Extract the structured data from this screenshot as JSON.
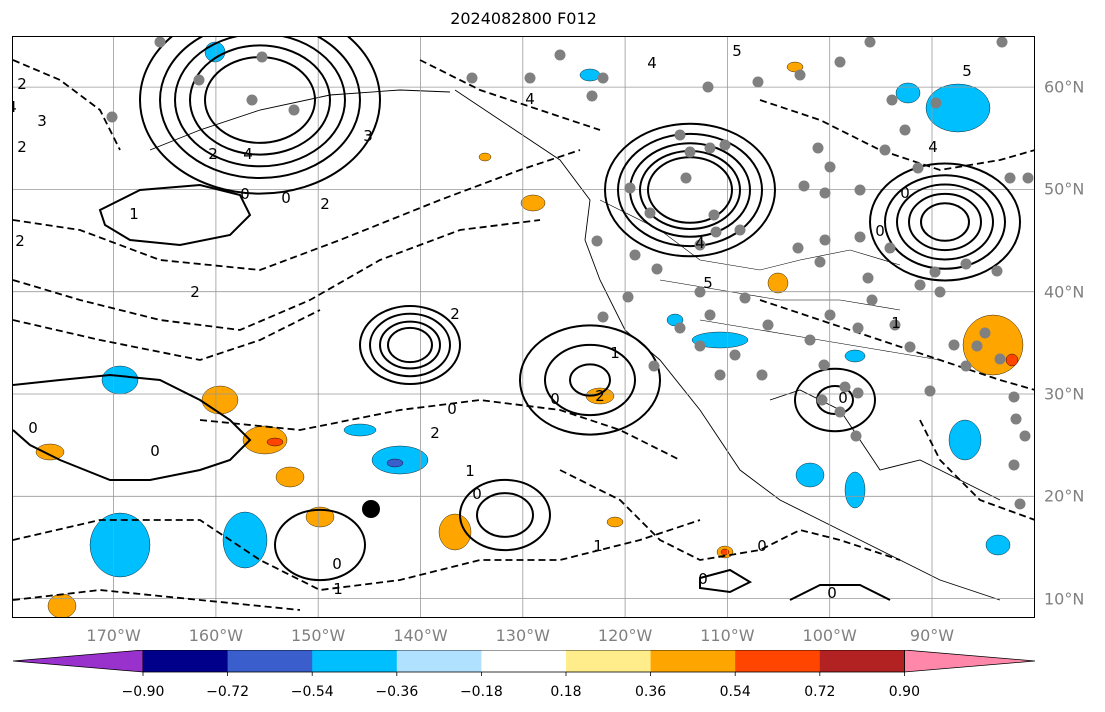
{
  "title": "2024082800 F012",
  "map": {
    "lat_labels": [
      {
        "deg": 60,
        "text": "60°N"
      },
      {
        "deg": 50,
        "text": "50°N"
      },
      {
        "deg": 40,
        "text": "40°N"
      },
      {
        "deg": 30,
        "text": "30°N"
      },
      {
        "deg": 20,
        "text": "20°N"
      },
      {
        "deg": 10,
        "text": "10°N"
      }
    ],
    "lon_labels": [
      {
        "deg": -170,
        "text": "170°W"
      },
      {
        "deg": -160,
        "text": "160°W"
      },
      {
        "deg": -150,
        "text": "150°W"
      },
      {
        "deg": -140,
        "text": "140°W"
      },
      {
        "deg": -130,
        "text": "130°W"
      },
      {
        "deg": -120,
        "text": "120°W"
      },
      {
        "deg": -110,
        "text": "110°W"
      },
      {
        "deg": -100,
        "text": "100°W"
      },
      {
        "deg": -90,
        "text": "90°W"
      }
    ],
    "contour_labels": [
      "0",
      "1",
      "2",
      "3",
      "4",
      "5",
      "-1",
      "-2",
      "-3",
      "-4"
    ],
    "colors": {
      "solid_contour": "#000000",
      "dashed_contour": "#000000",
      "grid": "#999999",
      "station_dot": "#808080",
      "marker": "#000000"
    }
  },
  "colorbar": {
    "colors": [
      "#9932cc",
      "#00008b",
      "#3a5fcd",
      "#00bfff",
      "#b0e2ff",
      "#ffffff",
      "#ffec8b",
      "#ffa500",
      "#ff4500",
      "#b22222",
      "#ff88aa"
    ],
    "labels": [
      "−0.90",
      "−0.72",
      "−0.54",
      "−0.36",
      "−0.18",
      "0.18",
      "0.36",
      "0.54",
      "0.72",
      "0.90"
    ],
    "extend": "both"
  }
}
